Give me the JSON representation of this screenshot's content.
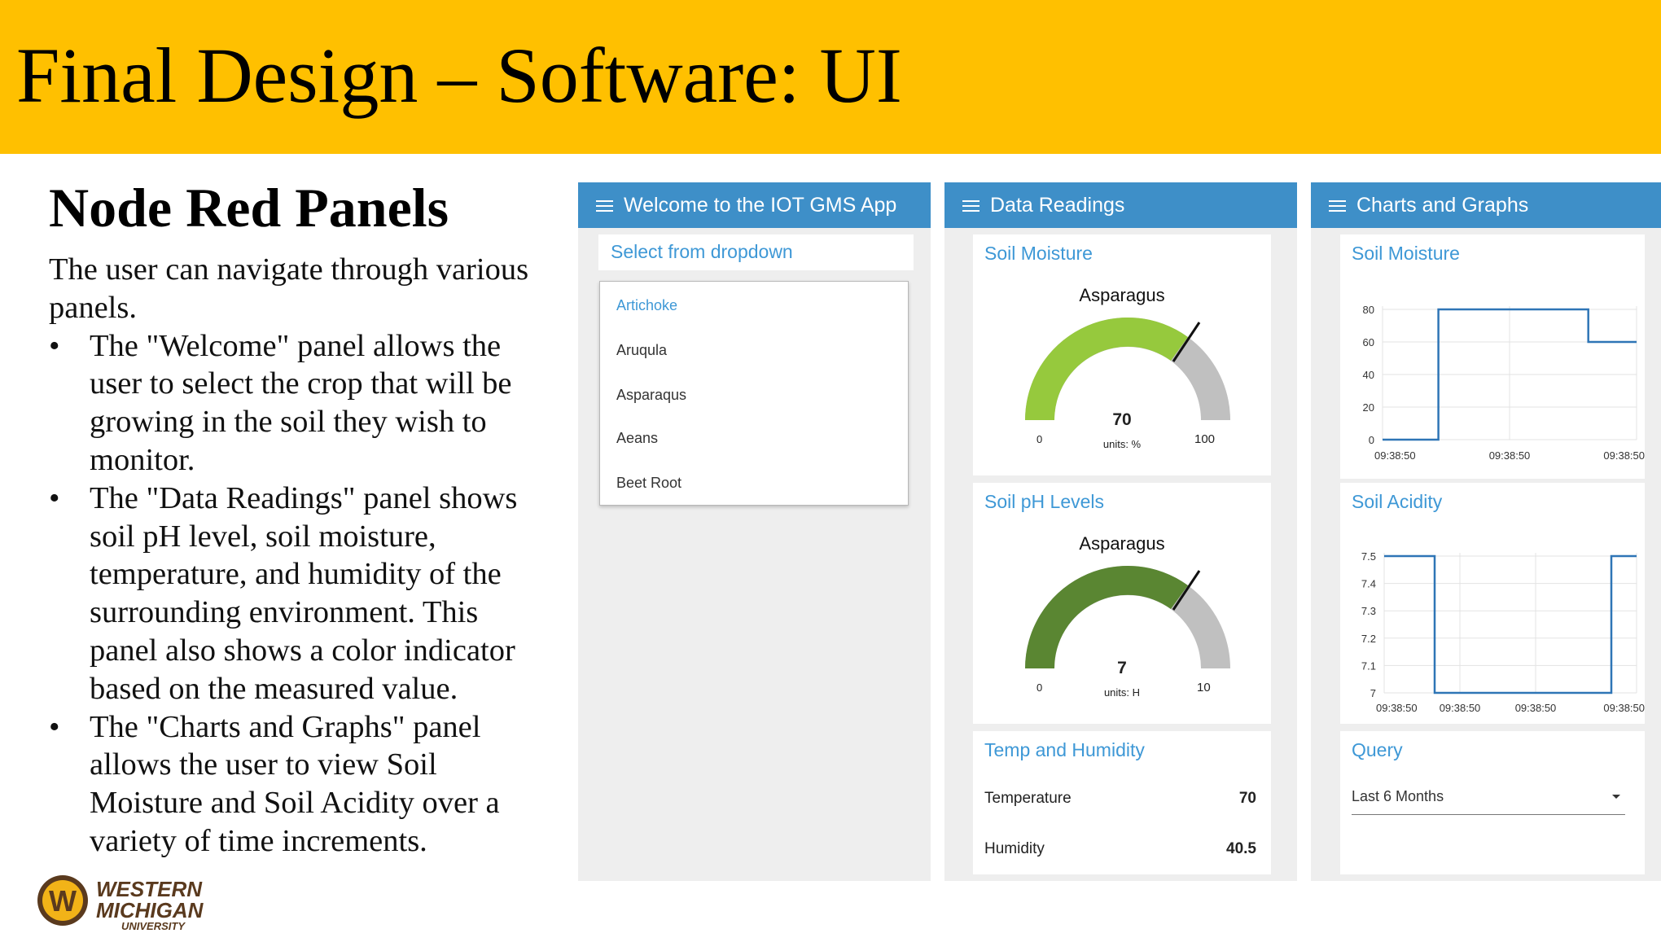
{
  "slide": {
    "title": "Final Design – Software: UI",
    "subtitle": "Node Red Panels",
    "intro": "The user can navigate through various panels.",
    "bullets": [
      "The \"Welcome\" panel allows the user to select the crop that will be growing in the soil they wish to monitor.",
      "The \"Data Readings\" panel shows soil pH level, soil moisture, temperature, and humidity of the surrounding environment. This panel also shows a color indicator based on the measured value.",
      "The \"Charts and Graphs\" panel allows the user to view Soil Moisture and Soil Acidity over a variety of time increments."
    ],
    "bullet_glyph": "•",
    "logo": {
      "line1": "WESTERN",
      "line2": "MICHIGAN",
      "line3": "UNIVERSITY",
      "emblem": "W"
    }
  },
  "colors": {
    "banner": "#FFC000",
    "header": "#3e8fc8",
    "accent": "#3e98d6",
    "moisture_gauge": "#96c93d",
    "ph_gauge": "#5a8632",
    "gauge_track": "#c0c0c0",
    "chart_line": "#2e75b6"
  },
  "welcome_panel": {
    "header": "Welcome to the IOT GMS App",
    "dropdown_label": "Select from dropdown",
    "options": [
      "Artichoke",
      "Aruqula",
      "Asparaqus",
      "Aeans",
      "Beet Root"
    ],
    "highlighted_option": "Artichoke"
  },
  "data_panel": {
    "header": "Data Readings",
    "moisture": {
      "title": "Soil Moisture",
      "crop": "Asparagus",
      "value": "70",
      "units": "units: %",
      "min": "0",
      "max": "100"
    },
    "ph": {
      "title": "Soil pH Levels",
      "crop": "Asparagus",
      "value": "7",
      "units": "units: H",
      "min": "0",
      "max": "10"
    },
    "temp_humidity": {
      "title": "Temp and Humidity",
      "temperature_label": "Temperature",
      "temperature_value": "70",
      "humidity_label": "Humidity",
      "humidity_value": "40.5"
    }
  },
  "charts_panel": {
    "header": "Charts and Graphs",
    "query": {
      "title": "Query",
      "selected": "Last 6 Months"
    }
  },
  "chart_data": [
    {
      "type": "line",
      "title": "Soil Moisture",
      "xlabel": "",
      "ylabel": "",
      "y_ticks": [
        "80",
        "60",
        "40",
        "20",
        "0"
      ],
      "ylim": [
        0,
        80
      ],
      "x_ticks": [
        "09:38:50",
        "09:38:50",
        "09:38:50"
      ],
      "grid": true,
      "series": [
        {
          "points": [
            [
              0,
              0
            ],
            [
              0.22,
              0
            ],
            [
              0.22,
              80
            ],
            [
              0.81,
              80
            ],
            [
              0.81,
              60
            ],
            [
              1,
              60
            ]
          ]
        }
      ]
    },
    {
      "type": "line",
      "title": "Soil Acidity",
      "xlabel": "",
      "ylabel": "",
      "y_ticks": [
        "7.5",
        "7.4",
        "7.3",
        "7.2",
        "7.1",
        "7"
      ],
      "ylim": [
        7,
        7.5
      ],
      "x_ticks": [
        "09:38:50",
        "09:38:50",
        "09:38:50",
        "09:38:50"
      ],
      "grid": true,
      "series": [
        {
          "points": [
            [
              0,
              7.5
            ],
            [
              0.2,
              7.5
            ],
            [
              0.2,
              7.0
            ],
            [
              0.9,
              7.0
            ],
            [
              0.9,
              7.5
            ],
            [
              1,
              7.5
            ]
          ]
        }
      ]
    }
  ]
}
